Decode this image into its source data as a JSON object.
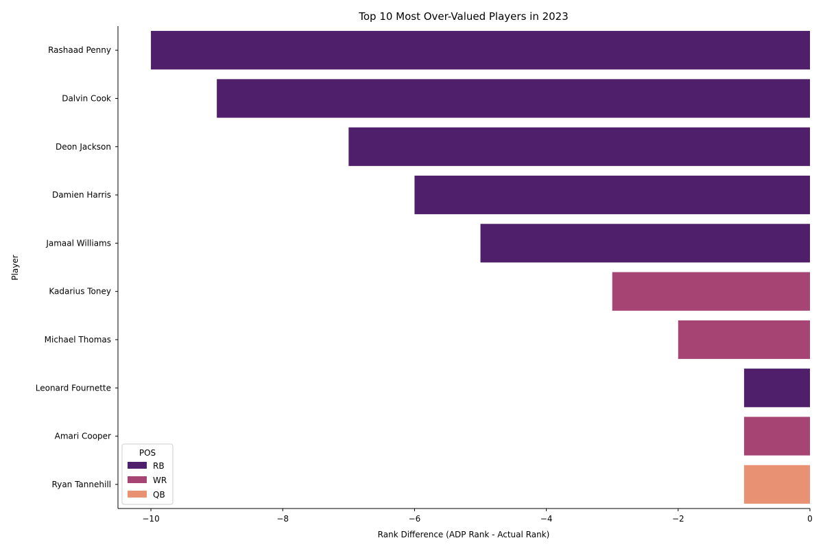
{
  "chart_data": {
    "type": "bar",
    "orientation": "horizontal",
    "title": "Top 10 Most Over-Valued Players in 2023",
    "xlabel": "Rank Difference (ADP Rank - Actual Rank)",
    "ylabel": "Player",
    "xlim": [
      -10.5,
      0
    ],
    "xticks": [
      -10,
      -8,
      -6,
      -4,
      -2,
      0
    ],
    "grid": false,
    "legend": {
      "title": "POS",
      "placement": "lower-left",
      "entries": [
        {
          "name": "RB",
          "color": "#4f1f6b"
        },
        {
          "name": "WR",
          "color": "#a64574"
        },
        {
          "name": "QB",
          "color": "#e99173"
        }
      ]
    },
    "categories": [
      "Rashaad Penny",
      "Dalvin Cook",
      "Deon Jackson",
      "Damien Harris",
      "Jamaal Williams",
      "Kadarius Toney",
      "Michael Thomas",
      "Leonard Fournette",
      "Amari Cooper",
      "Ryan Tannehill"
    ],
    "values": [
      -10,
      -9,
      -7,
      -6,
      -5,
      -3,
      -2,
      -1,
      -1,
      -1
    ],
    "positions": [
      "RB",
      "RB",
      "RB",
      "RB",
      "RB",
      "WR",
      "WR",
      "RB",
      "WR",
      "QB"
    ]
  }
}
